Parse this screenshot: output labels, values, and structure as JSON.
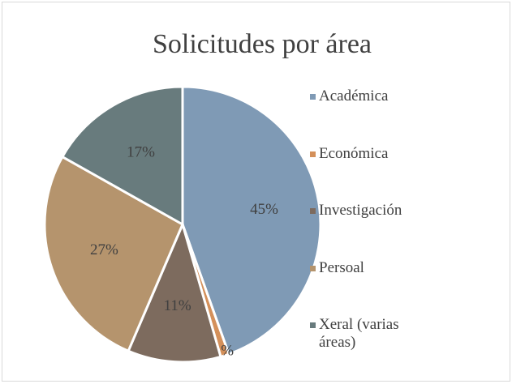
{
  "chart_data": {
    "type": "pie",
    "title": "Solicitudes por área",
    "categories": [
      "Académica",
      "Económica",
      "Investigación",
      "Persoal",
      "Xeral (varias áreas)"
    ],
    "values": [
      45,
      1,
      11,
      27,
      17
    ],
    "value_labels": [
      "45%",
      "1%",
      "11%",
      "27%",
      "17%"
    ],
    "colors": [
      "#7f9ab5",
      "#d4905a",
      "#7d6b5e",
      "#b5946d",
      "#687b7d"
    ],
    "legend": "right"
  }
}
